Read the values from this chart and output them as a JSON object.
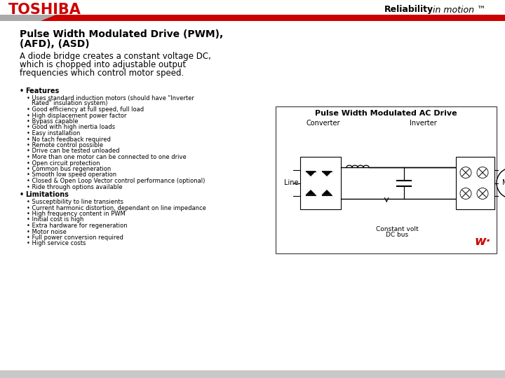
{
  "bg_color": "#ffffff",
  "header_red_color": "#cc0000",
  "header_gray_color": "#aaaaaa",
  "toshiba_color": "#cc0000",
  "toshiba_text": "TOSHIBA",
  "reliability_bold": "Reliability",
  "reliability_italic": " in motion ™",
  "title_line1": "Pulse Width Modulated Drive (PWM),",
  "title_line2": "(AFD), (ASD)",
  "subtitle_lines": [
    "A diode bridge creates a constant voltage DC,",
    "which is chopped into adjustable output",
    "frequencies which control motor speed."
  ],
  "features_header": "Features",
  "features_items": [
    "Uses standard induction motors (should have \"Inverter Rated\" insulation system)",
    "Good efficiency at full speed, full load",
    "High displacement power factor",
    "Bypass capable",
    "Good with high inertia loads",
    "Easy installation",
    "No tach feedback required",
    "Remote control possible",
    "Drive can be tested unloaded",
    "More than one motor can be connected to one drive",
    "Open circuit protection",
    "Common bus regeneration",
    "Smooth low speed operation",
    "Closed & Open Loop Vector control performance (optional)",
    "Ride through options available"
  ],
  "limitations_header": "Limitations",
  "limitations_items": [
    "Susceptibility to line transients",
    "Current harmonic distortion, dependant on line impedance",
    "High frequency content in PWM",
    "Initial cost is high",
    "Extra hardware for regeneration",
    "Motor noise",
    "Full power conversion required",
    "High service costs"
  ],
  "diagram_title": "Pulse Width Modulated AC Drive",
  "diagram_label_converter": "Converter",
  "diagram_label_inverter": "Inverter",
  "diagram_label_line": "Line",
  "diagram_label_motor": "Motor",
  "diagram_label_dcbus_1": "Constant volt",
  "diagram_label_dcbus_2": "DC bus",
  "watermark": "w·",
  "footer_color": "#c8c8c8"
}
